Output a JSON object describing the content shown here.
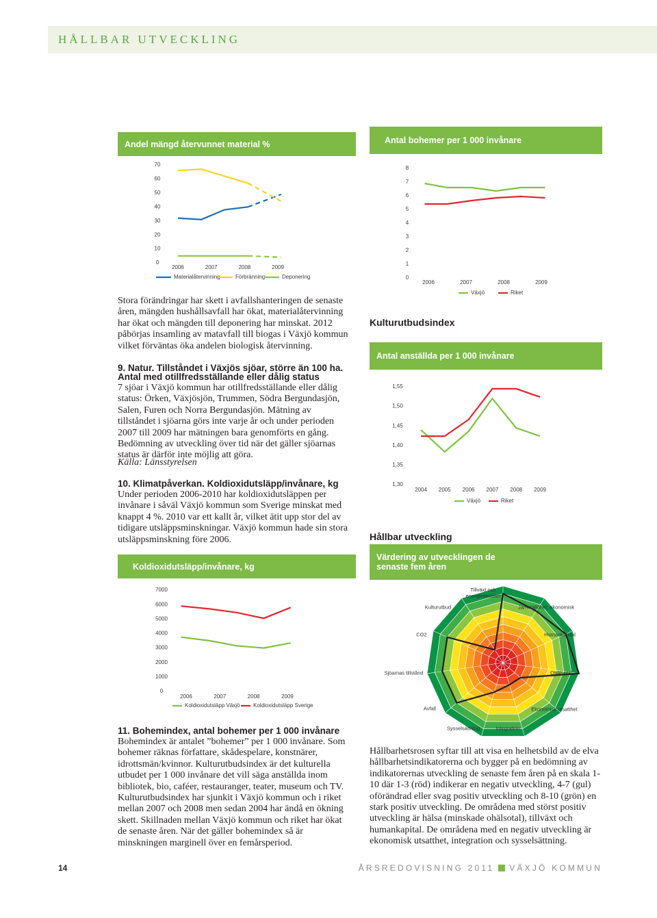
{
  "header": {
    "title": "HÅLLBAR UTVECKLING"
  },
  "text": {
    "waste_body": "Stora förändringar har skett i avfallshanteringen de senaste åren, mängden hushållsavfall har ökat, materialåtervinning har ökat och mängden till deponering har minskat. 2012 påbörjas insamling av matavfall till biogas i Växjö kommun vilket förväntas öka andelen biologisk återvinning.",
    "nature_heading": "9. Natur. Tillståndet i Växjös sjöar, större än 100 ha.",
    "nature_subheading": "Antal med otillfredsställande eller dålig status",
    "nature_body": "7 sjöar i Växjö kommun har otillfredsställande eller dålig status: Örken, Växjösjön, Trummen, Södra Bergundasjön, Salen, Furen och Norra Bergundasjön. Mätning av tillståndet i sjöarna görs inte varje år och under perioden 2007 till 2009 har mätningen bara genomförts en gång. Bedömning av utveckling över tid när det gäller sjöarnas status är därför inte möjlig att göra.",
    "nature_source": "Källa: Länsstyrelsen",
    "climate_heading": "10. Klimatpåverkan. Koldioxidutsläpp/invånare, kg",
    "climate_body": "Under perioden 2006-2010 har koldioxidutsläppen per invånare i såväl Växjö kommun som Sverige minskat med knappt 4 %. 2010 var ett kallt år, vilket ätit upp stor del av tidigare utsläppsminskningar. Växjö kommun hade sin stora utsläppsminskning före 2006.",
    "bohem_heading": "11. Bohemindex, antal bohemer per 1 000 invånare",
    "bohem_body": "Bohemindex är antalet ”bohemer” per 1 000 invånare. Som bohemer räknas författare, skådespelare, konstnärer, idrottsmän/kvinnor. Kulturutbudsindex är det kulturella utbudet per 1 000 invånare det vill säga anställda inom bibliotek, bio, caféer, restauranger, teater, museum och TV. Kulturutbudsindex har sjunkit i Växjö kommun och i riket mellan 2007 och 2008 men sedan 2004 har ändå en ökning skett. Skillnaden mellan Växjö kommun och riket har ökat de senaste åren. När det gäller bohemindex så är minskningen marginell över en femårsperiod.",
    "culture_heading": "Kulturutbudsindex",
    "sustain_heading": "Hållbar utveckling",
    "rose_body": "Hållbarhetsrosen syftar till att visa en helhetsbild av de elva hållbarhetsindikatorerna och bygger på en bedömning av indikatorernas utveckling de senaste fem åren på en skala 1-10 där 1-3 (röd) indikerar en negativ utveckling, 4-7 (gul) oförändrad eller svag positiv utveckling och 8-10 (grön) en stark positiv utveckling. De områdena med störst positiv utveckling är hälsa (minskade ohälsotal), tillväxt och humankapital. De områdena med en negativ utveckling är ekonomisk utsatthet, integration och sysselsättning."
  },
  "chart_data": [
    {
      "type": "line",
      "title": "Andel mängd återvunnet material %",
      "x": [
        2006,
        2006.7,
        2007.4,
        2008.1,
        2009.1
      ],
      "xlim": [
        2005.9,
        2009.2
      ],
      "xticks": [
        2006,
        2007,
        2008,
        2009
      ],
      "ylim": [
        0,
        70
      ],
      "yticks": [
        0,
        10,
        20,
        30,
        40,
        50,
        60,
        70
      ],
      "dashed_from": 3,
      "series": [
        {
          "name": "Materialåtervinning",
          "color": "#1f6db3",
          "values": [
            32,
            31,
            38,
            40,
            49
          ]
        },
        {
          "name": "Förbränning",
          "color": "#f5d327",
          "values": [
            66,
            67,
            62,
            57,
            44
          ]
        },
        {
          "name": "Deponering",
          "color": "#8cc63f",
          "values": [
            5,
            5,
            5,
            5,
            4
          ]
        }
      ]
    },
    {
      "type": "line",
      "title": "Antal bohemer per 1 000 invånare",
      "x": [
        2005.9,
        2006.5,
        2007.15,
        2007.8,
        2008.45,
        2009.1
      ],
      "xlim": [
        2005.85,
        2009.15
      ],
      "xticks": [
        2006,
        2007,
        2008,
        2009
      ],
      "ylim": [
        0,
        8
      ],
      "yticks": [
        0,
        1,
        2,
        3,
        4,
        5,
        6,
        7,
        8
      ],
      "series": [
        {
          "name": "Växjö",
          "color": "#7ec242",
          "values": [
            6.9,
            6.6,
            6.6,
            6.35,
            6.6,
            6.6
          ]
        },
        {
          "name": "Riket",
          "color": "#e0262b",
          "values": [
            5.4,
            5.4,
            5.65,
            5.85,
            5.95,
            5.85
          ]
        }
      ]
    },
    {
      "type": "line",
      "title": "Antal anställda per 1 000 invånare",
      "categories": [
        "2004",
        "2005",
        "2006",
        "2007",
        "2008",
        "2009"
      ],
      "ylim": [
        1.3,
        1.55
      ],
      "yticks": [
        {
          "value": 1.3,
          "label": "1,30"
        },
        {
          "value": 1.35,
          "label": "1,35"
        },
        {
          "value": 1.4,
          "label": "1,40"
        },
        {
          "value": 1.45,
          "label": "1,45"
        },
        {
          "value": 1.5,
          "label": "1,50"
        },
        {
          "value": 1.55,
          "label": "1,55"
        }
      ],
      "series": [
        {
          "name": "Växjö",
          "color": "#7ec242",
          "values": [
            1.44,
            1.384,
            1.436,
            1.52,
            1.445,
            1.424
          ]
        },
        {
          "name": "Riket",
          "color": "#e0262b",
          "values": [
            1.424,
            1.424,
            1.466,
            1.545,
            1.545,
            1.524
          ]
        }
      ]
    },
    {
      "type": "line",
      "title": "Koldioxidutsläpp/invånare, kg",
      "x": [
        2005.85,
        2006.7,
        2007.5,
        2008.3,
        2009.1
      ],
      "xlim": [
        2005.85,
        2009.1
      ],
      "xticks": [
        2006,
        2007,
        2008,
        2009
      ],
      "ylim": [
        0,
        7000
      ],
      "yticks": [
        0,
        1000,
        2000,
        3000,
        4000,
        5000,
        6000,
        7000
      ],
      "series": [
        {
          "name": "Koldioxidutsläpp Växjö",
          "color": "#7ec242",
          "values": [
            3750,
            3500,
            3150,
            3000,
            3350
          ]
        },
        {
          "name": "Koldioxidutsläpp Sverige",
          "color": "#e0262b",
          "values": [
            5900,
            5700,
            5450,
            5050,
            5800
          ]
        }
      ]
    },
    {
      "type": "radar",
      "title": "Värdering av utvecklingen de senaste fem åren",
      "categories": [
        "Tillväxt och energiintensitet",
        "Jämställdhet, ekonomisk",
        "Humankapital",
        "Ohälsotal",
        "Ekonomisk utsatthet",
        "Integration",
        "Sysselsättning",
        "Avfall",
        "Sjöarnas tillstånd",
        "CO2",
        "Kulturutbud"
      ],
      "values": [
        9,
        8,
        9,
        10,
        3,
        3,
        4,
        8,
        8,
        8,
        2
      ],
      "rlim": [
        0,
        10
      ],
      "line_color": "#231f20",
      "ring_colors": [
        "#c8161d",
        "#e2261f",
        "#ee4a24",
        "#f57b20",
        "#f9a01b",
        "#fcc419",
        "#ffe21a",
        "#8dc63f",
        "#3fae49",
        "#0a9447"
      ]
    }
  ],
  "footer": {
    "page": "14",
    "publication": "ÅRSREDOVISNING 2011",
    "organization": "VÄXJÖ KOMMUN"
  }
}
